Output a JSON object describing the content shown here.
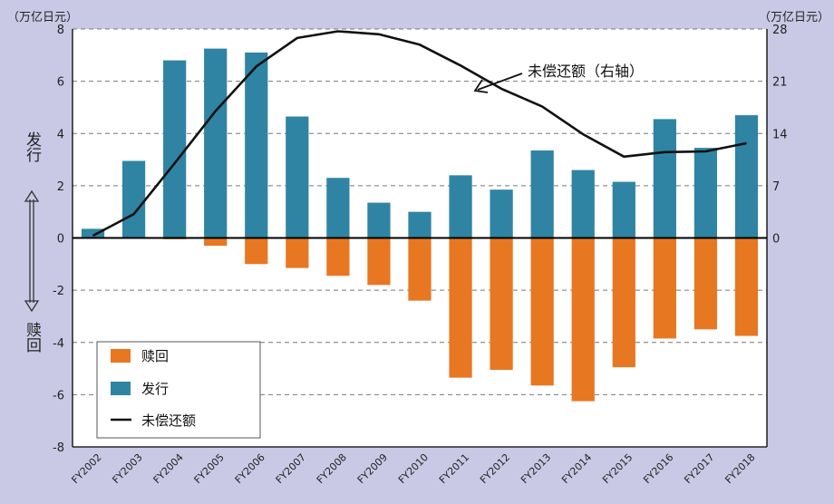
{
  "chart_data": {
    "type": "bar",
    "categories": [
      "FY2002",
      "FY2003",
      "FY2004",
      "FY2005",
      "FY2006",
      "FY2007",
      "FY2008",
      "FY2009",
      "FY2010",
      "FY2011",
      "FY2012",
      "FY2013",
      "FY2014",
      "FY2015",
      "FY2016",
      "FY2017",
      "FY2018"
    ],
    "series": [
      {
        "name": "赎回",
        "type": "bar",
        "axis": "left",
        "color": "#e87722",
        "values": [
          0,
          0,
          -0.05,
          -0.3,
          -1.0,
          -1.15,
          -1.45,
          -1.8,
          -2.4,
          -5.35,
          -5.05,
          -5.65,
          -6.25,
          -4.95,
          -3.85,
          -3.5,
          -3.75
        ]
      },
      {
        "name": "发行",
        "type": "bar",
        "axis": "left",
        "color": "#2f84a3",
        "values": [
          0.35,
          2.95,
          6.8,
          7.25,
          7.1,
          4.65,
          2.3,
          1.35,
          1.0,
          2.4,
          1.85,
          3.35,
          2.6,
          2.15,
          4.55,
          3.45,
          4.7
        ]
      },
      {
        "name": "未偿还额",
        "type": "line",
        "axis": "right",
        "color": "#111111",
        "values": [
          0.3,
          3.2,
          10.0,
          17.0,
          23.0,
          26.8,
          27.7,
          27.3,
          25.9,
          23.1,
          20.0,
          17.6,
          13.9,
          10.9,
          11.5,
          11.6,
          12.7
        ]
      }
    ],
    "ylim_left": [
      -8,
      8
    ],
    "yticks_left": [
      "8",
      "6",
      "4",
      "2",
      "0",
      "-2",
      "-4",
      "-6",
      "-8"
    ],
    "ylim_right": [
      -28,
      28
    ],
    "yticks_right": [
      "28",
      "21",
      "14",
      "7",
      "0"
    ],
    "unit_left": "（万亿日元）",
    "unit_right": "（万亿日元）",
    "side_label_top": "发行",
    "side_label_bottom": "赎回",
    "annotation": "未偿还额（右轴）",
    "legend": [
      {
        "label": "赎回",
        "kind": "box",
        "color": "#e87722"
      },
      {
        "label": "发行",
        "kind": "box",
        "color": "#2f84a3"
      },
      {
        "label": "未偿还额",
        "kind": "line",
        "color": "#111111"
      }
    ],
    "legend_position": "bottom-left",
    "grid": true
  }
}
